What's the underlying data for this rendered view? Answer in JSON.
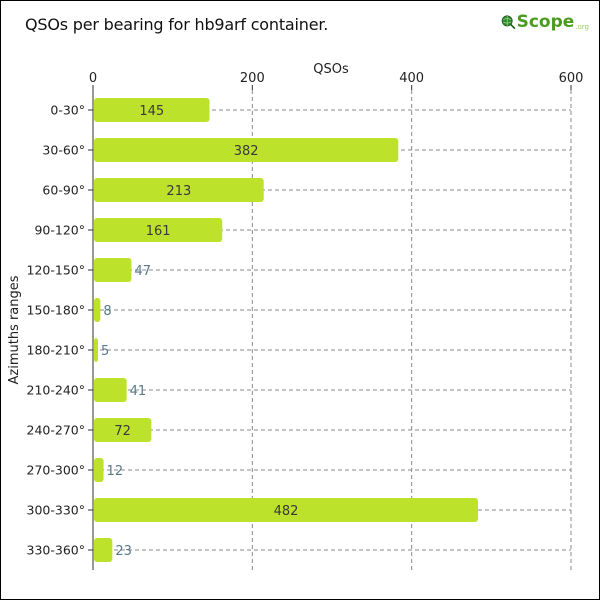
{
  "header": {
    "title": "QSOs per bearing for hb9arf container."
  },
  "logo": {
    "text": "Scope",
    "suffix": ".org"
  },
  "colors": {
    "bar": "#bde22c",
    "grid": "#888888",
    "label_inside": "#3a3a3a",
    "label_outside": "#5a7a8a"
  },
  "chart_data": {
    "type": "bar",
    "orientation": "horizontal",
    "title": "QSOs per bearing for hb9arf container.",
    "xlabel": "QSOs",
    "ylabel": "Azimuths ranges",
    "xlim": [
      0,
      600
    ],
    "xticks": [
      0,
      200,
      400,
      600
    ],
    "categories": [
      "0-30°",
      "30-60°",
      "60-90°",
      "90-120°",
      "120-150°",
      "150-180°",
      "180-210°",
      "210-240°",
      "240-270°",
      "270-300°",
      "300-330°",
      "330-360°"
    ],
    "values": [
      145,
      382,
      213,
      161,
      47,
      8,
      5,
      41,
      72,
      12,
      482,
      23
    ],
    "grid": true
  }
}
